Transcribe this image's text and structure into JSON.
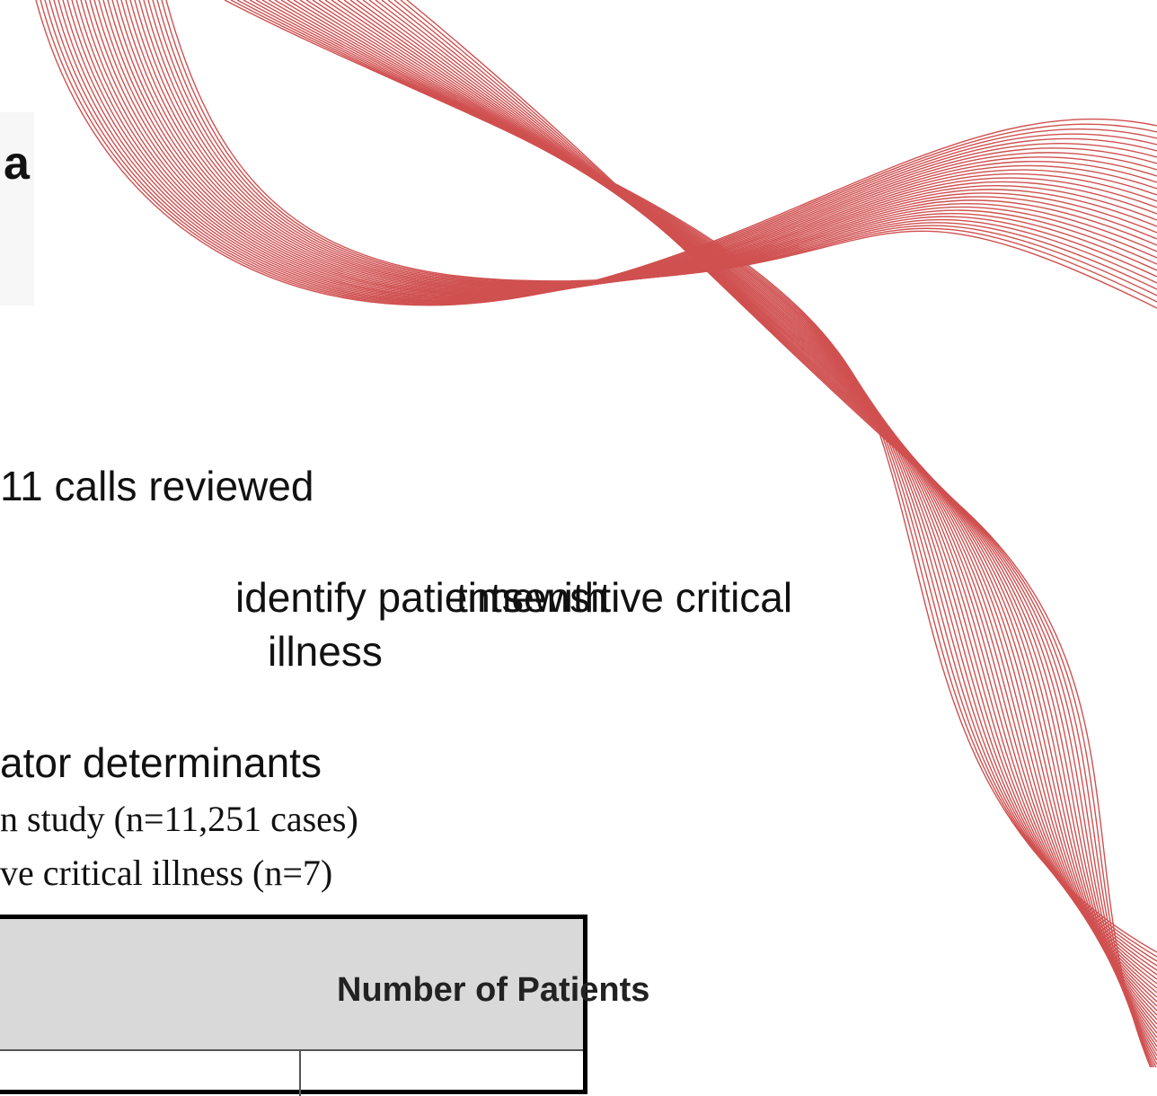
{
  "title_fragment": "a",
  "bullets": [
    "11 calls reviewed",
    "identify patients with",
    "time-",
    "sensitive critical",
    "illness",
    "ator determinants"
  ],
  "sub_bullets": [
    "n study (n=11,251 cases)",
    "ve critical illness (n=7)"
  ],
  "table": {
    "header": "Number of Patients"
  }
}
